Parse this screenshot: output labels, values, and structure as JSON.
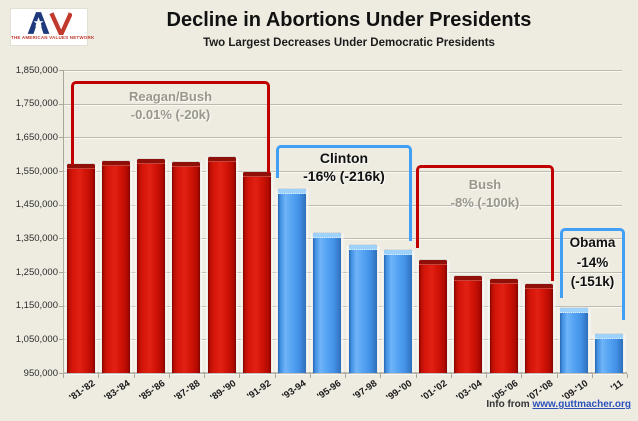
{
  "logo": {
    "icon": "american-values-network-av-logo",
    "name": "THE AMERICAN VALUES NETWORK"
  },
  "header": {
    "title": "Decline in Abortions Under Presidents",
    "subtitle": "Two Largest Decreases Under Democratic Presidents"
  },
  "chart_data": {
    "type": "bar",
    "title": "Decline in Abortions Under Presidents",
    "subtitle": "Two Largest Decreases Under Democratic Presidents",
    "categories": [
      "'81-'82",
      "'83-'84",
      "'85-'86",
      "'87-'88",
      "'89-'90",
      "'91-92",
      "'93-94",
      "'95-96",
      "'97-98",
      "'99-'00",
      "'01-'02",
      "'03-'04",
      "'05-'06",
      "'07-'08",
      "'09-'10",
      "'11"
    ],
    "values": [
      1572000,
      1579000,
      1586000,
      1578000,
      1592000,
      1546000,
      1497000,
      1367000,
      1330000,
      1316000,
      1286000,
      1238000,
      1228000,
      1214000,
      1143000,
      1066000
    ],
    "party": [
      "R",
      "R",
      "R",
      "R",
      "R",
      "R",
      "D",
      "D",
      "D",
      "D",
      "R",
      "R",
      "R",
      "R",
      "D",
      "D"
    ],
    "ylim": [
      950000,
      1850000
    ],
    "ytick_labels": [
      "1,850,000",
      "1,750,000",
      "1,650,000",
      "1,550,000",
      "1,450,000",
      "1,350,000",
      "1,250,000",
      "1,150,000",
      "1,050,000",
      "950,000"
    ],
    "ytick_values": [
      1850000,
      1750000,
      1650000,
      1550000,
      1450000,
      1350000,
      1250000,
      1150000,
      1050000,
      950000
    ],
    "grid": true,
    "legend": "none",
    "colors": {
      "republican_bar": "#d01307",
      "democrat_bar": "#4a9af0",
      "bracket_red": "#c00000",
      "bracket_blue": "#3fa0f5",
      "gray_label": "#9a988c",
      "black_label": "#111111"
    },
    "annotations": [
      {
        "id": "reagan_bush",
        "lines": [
          "Reagan/Bush",
          "-0.01% (-20k)"
        ],
        "bracket": "red",
        "text": "gray"
      },
      {
        "id": "clinton",
        "lines": [
          "Clinton",
          "-16% (-216k)"
        ],
        "bracket": "blue",
        "text": "black"
      },
      {
        "id": "bush",
        "lines": [
          "Bush",
          "-8% (-100k)"
        ],
        "bracket": "red",
        "text": "gray"
      },
      {
        "id": "obama",
        "lines": [
          "Obama",
          "-14%",
          "(-151k)"
        ],
        "bracket": "blue",
        "text": "black"
      }
    ]
  },
  "footer": {
    "prefix": "Info from ",
    "link": "www.guttmacher.org"
  }
}
